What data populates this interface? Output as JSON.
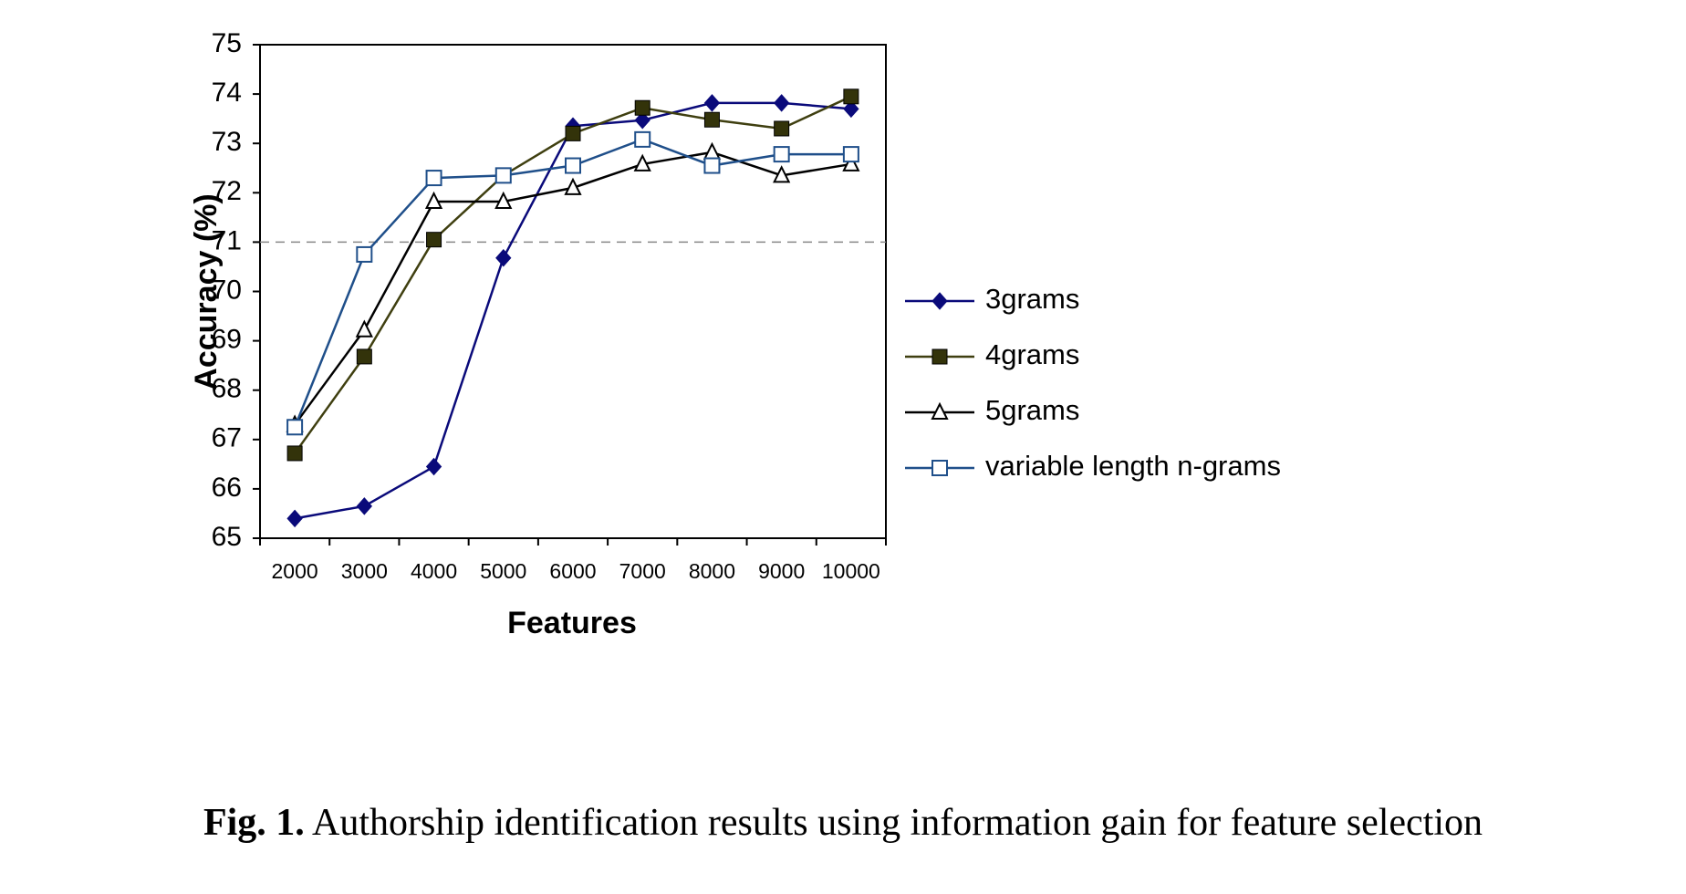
{
  "caption": {
    "label": "Fig. 1.",
    "text": " Authorship identification results using information gain for feature selection"
  },
  "chart_data": {
    "type": "line",
    "title": "",
    "xlabel": "Features",
    "ylabel": "Accuracy (%)",
    "categories": [
      "2000",
      "3000",
      "4000",
      "5000",
      "6000",
      "7000",
      "8000",
      "9000",
      "10000"
    ],
    "ylim": [
      65,
      75
    ],
    "yticks": [
      "65",
      "66",
      "67",
      "68",
      "69",
      "70",
      "71",
      "72",
      "73",
      "74",
      "75"
    ],
    "reference_line": 71,
    "grid": false,
    "legend_position": "right",
    "series": [
      {
        "name": "3grams",
        "marker": "diamond-filled",
        "color": "#0a0a7a",
        "markerColor": "#0a0a7a",
        "values": [
          65.4,
          65.65,
          66.45,
          70.68,
          73.35,
          73.47,
          73.82,
          73.82,
          73.7
        ]
      },
      {
        "name": "4grams",
        "marker": "square-filled",
        "color": "#3f3f10",
        "markerColor": "#33330a",
        "values": [
          66.72,
          68.68,
          71.05,
          72.35,
          73.2,
          73.72,
          73.48,
          73.3,
          73.95
        ]
      },
      {
        "name": "5grams",
        "marker": "triangle-open",
        "color": "#000000",
        "markerColor": "#000000",
        "values": [
          67.3,
          69.22,
          71.82,
          71.82,
          72.1,
          72.58,
          72.82,
          72.35,
          72.58
        ]
      },
      {
        "name": "variable length n-grams",
        "marker": "square-open",
        "color": "#1f4f8a",
        "markerColor": "#1f4f8a",
        "values": [
          67.25,
          70.75,
          72.3,
          72.35,
          72.55,
          73.08,
          72.55,
          72.78,
          72.78
        ]
      }
    ]
  }
}
